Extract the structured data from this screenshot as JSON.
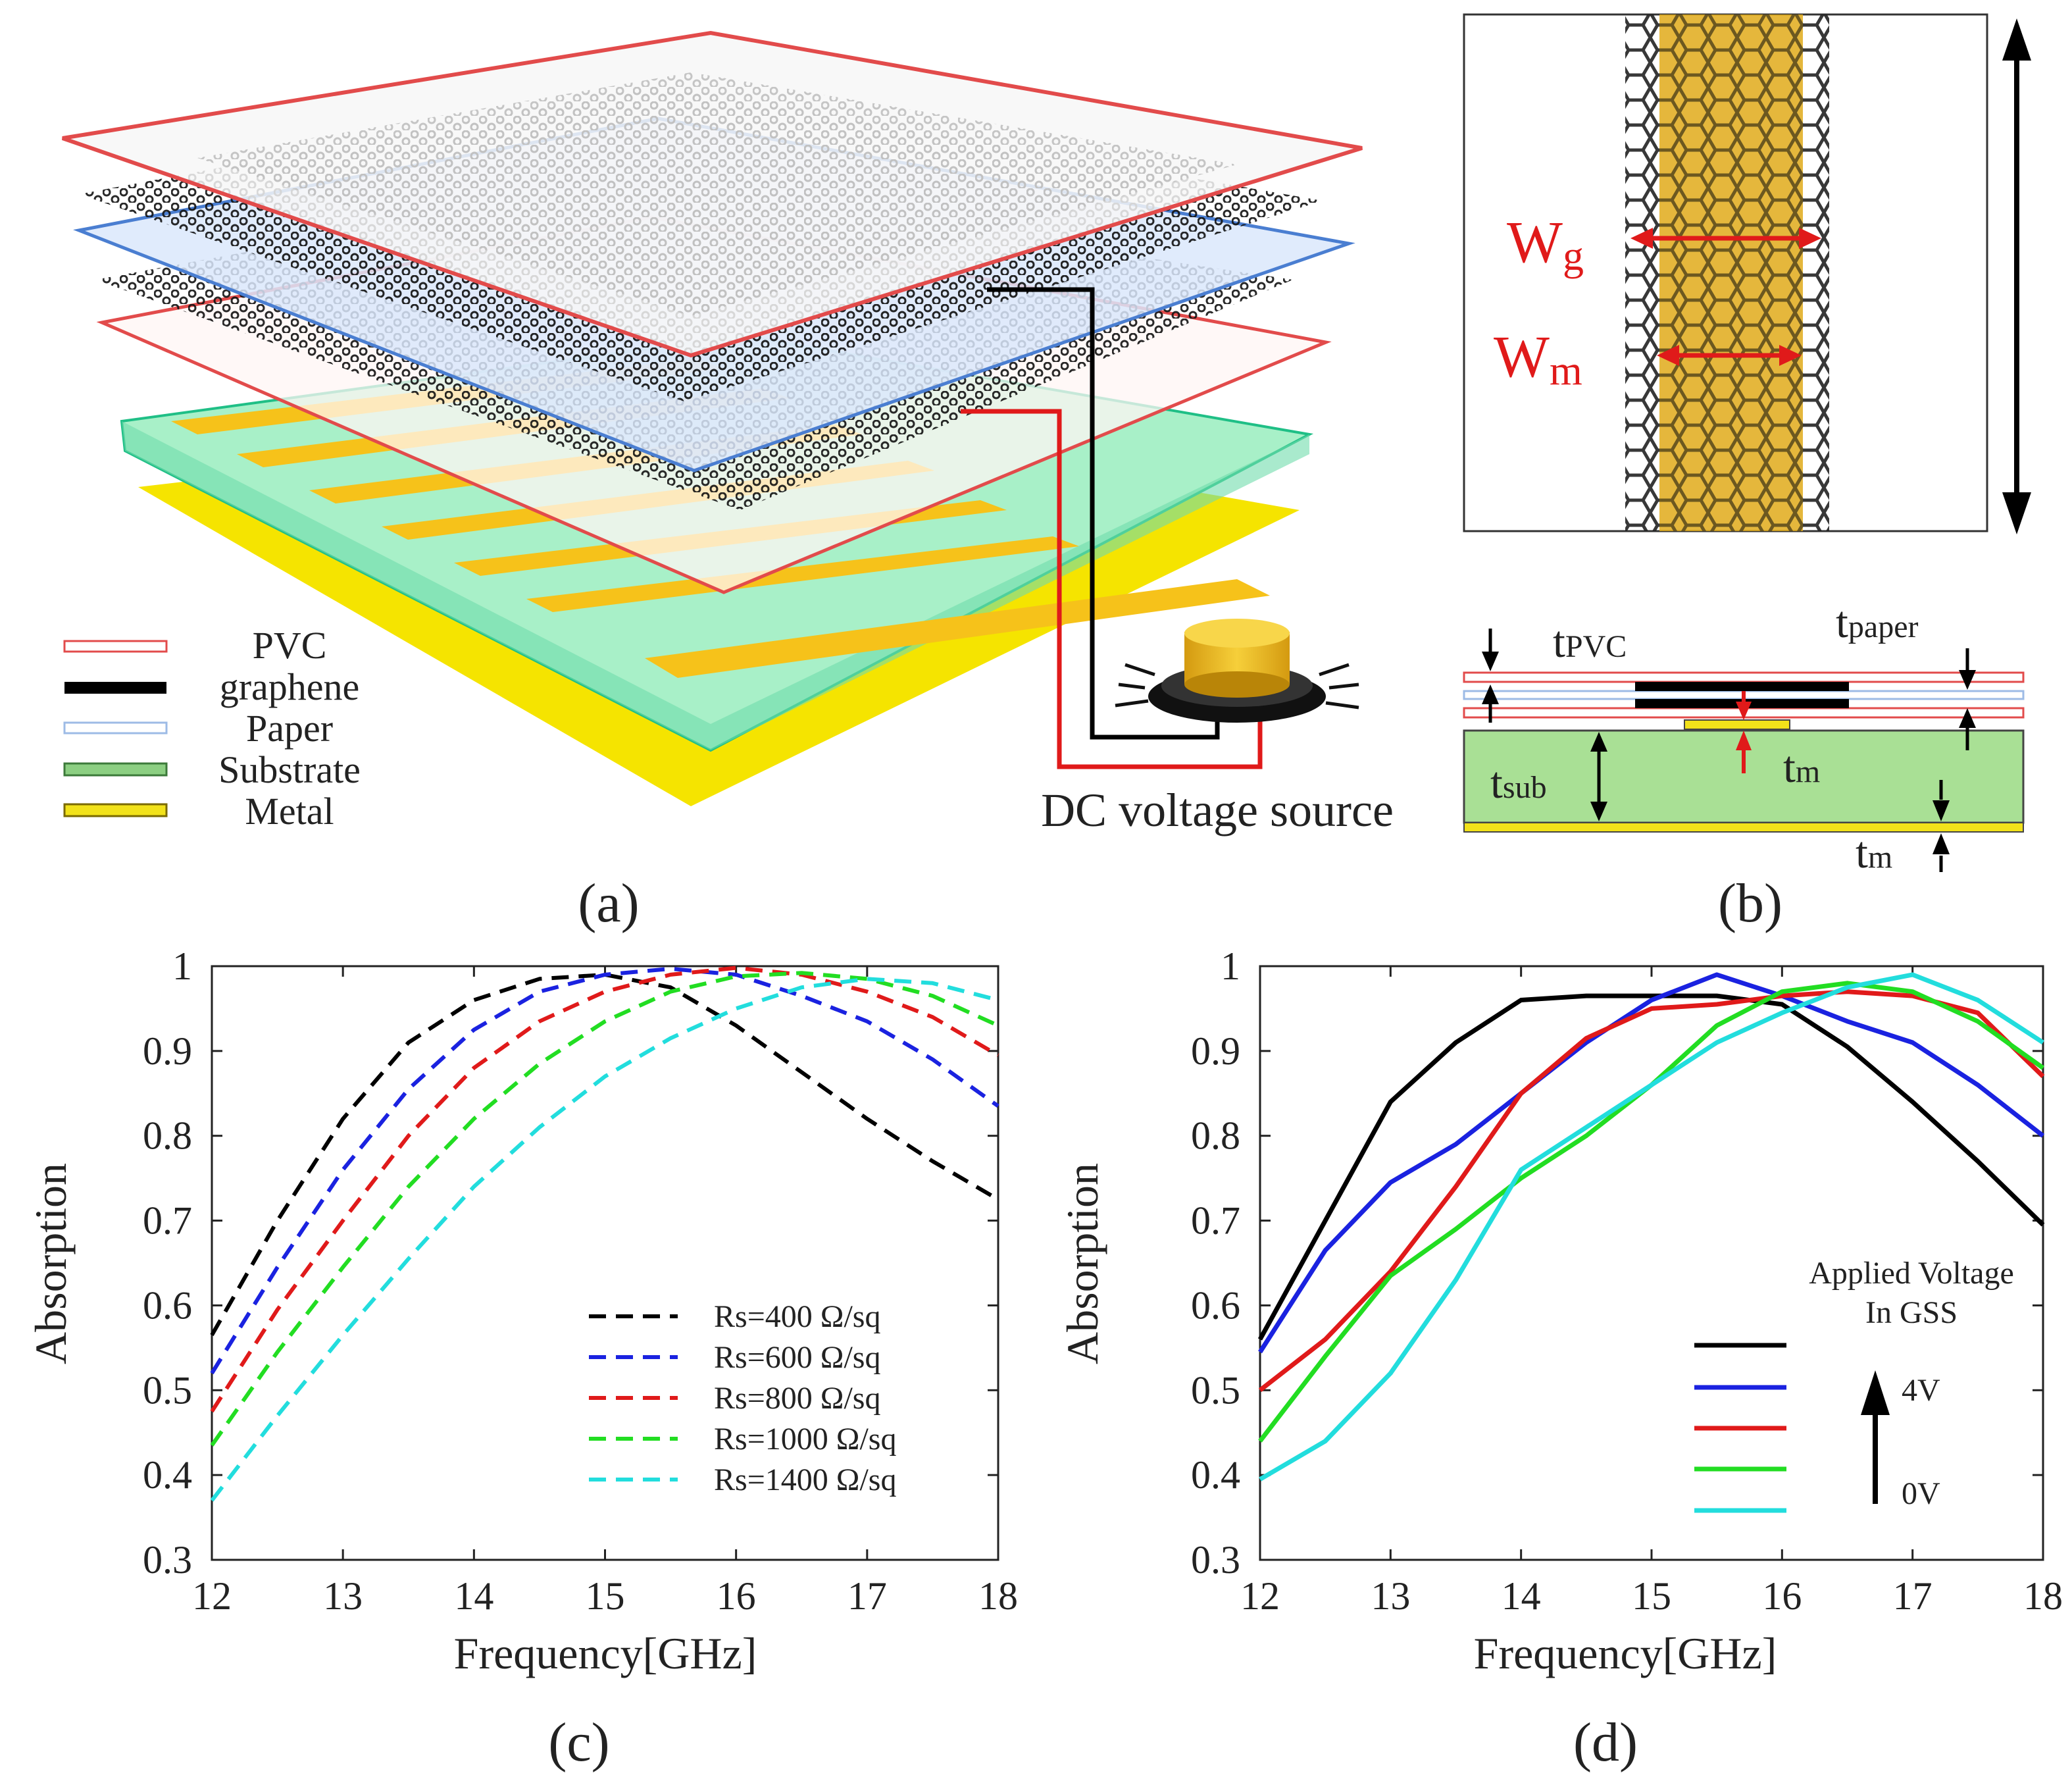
{
  "panel_a": {
    "caption": "(a)",
    "legend": [
      {
        "label": "PVC",
        "fill": "#ffffff",
        "stroke": "#e24b4b",
        "thickness": "thin"
      },
      {
        "label": "graphene",
        "fill": "#000000",
        "stroke": "#000000",
        "thickness": "thick"
      },
      {
        "label": "Paper",
        "fill": "#ffffff",
        "stroke": "#9dbbe6",
        "thickness": "thin"
      },
      {
        "label": "Substrate",
        "fill": "#8ccf82",
        "stroke": "#3c7a3a",
        "thickness": "thin"
      },
      {
        "label": "Metal",
        "fill": "#f2e21a",
        "stroke": "#7a6a00",
        "thickness": "thin"
      }
    ],
    "source_label": "DC voltage source",
    "colors": {
      "pvc": "#e24b4b",
      "paper": "#4a7ed1",
      "substrate": "#38d19a",
      "metal": "#f5e400",
      "strip": "#f6c21a"
    }
  },
  "panel_b": {
    "caption": "(b)",
    "labels": {
      "wg": "W",
      "wg_sub": "g",
      "wm": "W",
      "wm_sub": "m",
      "t_pvc": "t",
      "t_pvc_sub": "PVC",
      "t_paper": "t",
      "t_paper_sub": "paper",
      "t_sub": "t",
      "t_sub_sub": "sub",
      "t_m1": "t",
      "t_m1_sub": "m",
      "t_m2": "t",
      "t_m2_sub": "m"
    }
  },
  "chart_data": [
    {
      "id": "c",
      "type": "line",
      "caption": "(c)",
      "xlabel": "Frequency[GHz]",
      "ylabel": "Absorption",
      "xlim": [
        12,
        18
      ],
      "ylim": [
        0.3,
        1.0
      ],
      "xticks": [
        "12",
        "13",
        "14",
        "15",
        "16",
        "17",
        "18"
      ],
      "yticks": [
        "0.3",
        "0.4",
        "0.5",
        "0.6",
        "0.7",
        "0.8",
        "0.9",
        "1"
      ],
      "x": [
        12,
        12.5,
        13,
        13.5,
        14,
        14.5,
        15,
        15.5,
        16,
        16.5,
        17,
        17.5,
        18
      ],
      "legend_title": "",
      "series": [
        {
          "name": "Rs=400 Ω/sq",
          "color": "#000000",
          "dash": true,
          "values": [
            0.565,
            0.7,
            0.82,
            0.91,
            0.96,
            0.985,
            0.99,
            0.975,
            0.93,
            0.875,
            0.82,
            0.77,
            0.725
          ]
        },
        {
          "name": "Rs=600 Ω/sq",
          "color": "#1a22e0",
          "dash": true,
          "values": [
            0.52,
            0.645,
            0.76,
            0.855,
            0.925,
            0.97,
            0.99,
            0.997,
            0.99,
            0.965,
            0.935,
            0.89,
            0.835
          ]
        },
        {
          "name": "Rs=800 Ω/sq",
          "color": "#e01a1a",
          "dash": true,
          "values": [
            0.475,
            0.595,
            0.7,
            0.8,
            0.88,
            0.935,
            0.97,
            0.99,
            0.998,
            0.99,
            0.97,
            0.94,
            0.895
          ]
        },
        {
          "name": "Rs=1000 Ω/sq",
          "color": "#22dd22",
          "dash": true,
          "values": [
            0.435,
            0.545,
            0.645,
            0.74,
            0.82,
            0.885,
            0.935,
            0.97,
            0.988,
            0.992,
            0.985,
            0.965,
            0.93
          ]
        },
        {
          "name": "Rs=1400 Ω/sq",
          "color": "#22dddd",
          "dash": true,
          "values": [
            0.37,
            0.47,
            0.565,
            0.655,
            0.74,
            0.81,
            0.87,
            0.915,
            0.95,
            0.975,
            0.985,
            0.98,
            0.96
          ]
        }
      ]
    },
    {
      "id": "d",
      "type": "line",
      "caption": "(d)",
      "xlabel": "Frequency[GHz]",
      "ylabel": "Absorption",
      "xlim": [
        12,
        18
      ],
      "ylim": [
        0.3,
        1.0
      ],
      "xticks": [
        "12",
        "13",
        "14",
        "15",
        "16",
        "17",
        "18"
      ],
      "yticks": [
        "0.3",
        "0.4",
        "0.5",
        "0.6",
        "0.7",
        "0.8",
        "0.9",
        "1"
      ],
      "x": [
        12,
        12.5,
        13,
        13.5,
        14,
        14.5,
        15,
        15.5,
        16,
        16.5,
        17,
        17.5,
        18
      ],
      "legend_title": "Applied Voltage In GSS",
      "legend_title_line1": "Applied Voltage",
      "legend_title_line2": "In GSS",
      "arrow_high": "4V",
      "arrow_low": "0V",
      "series": [
        {
          "name": "",
          "color": "#000000",
          "dash": false,
          "values": [
            0.56,
            0.7,
            0.84,
            0.91,
            0.96,
            0.965,
            0.965,
            0.965,
            0.955,
            0.905,
            0.84,
            0.77,
            0.695
          ]
        },
        {
          "name": "",
          "color": "#1a22e0",
          "dash": false,
          "values": [
            0.545,
            0.665,
            0.745,
            0.79,
            0.85,
            0.91,
            0.96,
            0.99,
            0.965,
            0.935,
            0.91,
            0.86,
            0.8
          ]
        },
        {
          "name": "",
          "color": "#e01a1a",
          "dash": false,
          "values": [
            0.5,
            0.56,
            0.64,
            0.74,
            0.85,
            0.915,
            0.95,
            0.955,
            0.965,
            0.97,
            0.965,
            0.945,
            0.87
          ]
        },
        {
          "name": "",
          "color": "#22dd22",
          "dash": false,
          "values": [
            0.44,
            0.54,
            0.635,
            0.69,
            0.75,
            0.8,
            0.86,
            0.93,
            0.97,
            0.98,
            0.97,
            0.935,
            0.88
          ]
        },
        {
          "name": "",
          "color": "#22dddd",
          "dash": false,
          "values": [
            0.395,
            0.44,
            0.52,
            0.63,
            0.76,
            0.81,
            0.86,
            0.91,
            0.945,
            0.975,
            0.99,
            0.96,
            0.91
          ]
        }
      ]
    }
  ]
}
